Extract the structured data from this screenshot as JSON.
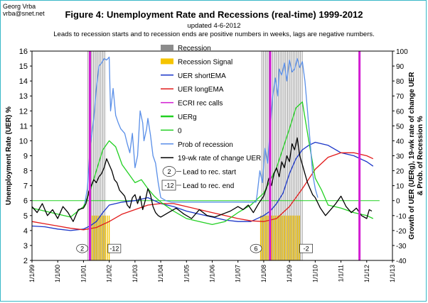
{
  "header": {
    "author": "Georg Vrba",
    "email": "vrba@snet.net",
    "title": "Figure 4:  Unemployment Rate and Recessions (real-time) 1999-2012",
    "updated": "updated 4-6-2012",
    "subtitle": "Leads to recession starts and to recession ends are positive numbers in weeks, lags are negative numbers."
  },
  "chart_data": {
    "type": "line",
    "title": "Figure 4:  Unemployment Rate and Recessions (real-time) 1999-2012",
    "ylabel": "Unemployment Rate (UER) %",
    "y2label_line1": "Growth of UER (UERg), 19-wk rate of change UER",
    "y2label_line2": "& Prob. of Recession %",
    "ylim": [
      2,
      16
    ],
    "y2lim": [
      -40,
      100
    ],
    "yticks": [
      "2",
      "3",
      "4",
      "5",
      "6",
      "7",
      "8",
      "9",
      "10",
      "11",
      "12",
      "13",
      "14",
      "15",
      "16"
    ],
    "y2ticks": [
      "-40",
      "-30",
      "-20",
      "-10",
      "0",
      "10",
      "20",
      "30",
      "40",
      "50",
      "60",
      "70",
      "80",
      "90",
      "100"
    ],
    "xlim": [
      1999.0,
      2013.0
    ],
    "xticks": [
      "1/1/99",
      "1/1/00",
      "1/1/01",
      "1/1/02",
      "1/1/03",
      "1/1/04",
      "1/1/05",
      "1/1/06",
      "1/1/07",
      "1/1/08",
      "1/1/09",
      "1/1/10",
      "1/1/11",
      "1/1/12",
      "1/1/13"
    ],
    "grid": false,
    "legend_position": "top-center",
    "legend": [
      {
        "label": "Recession",
        "kind": "box",
        "color": "#8c8c8c"
      },
      {
        "label": "Recession Signal",
        "kind": "box",
        "color": "#f5c400"
      },
      {
        "label": "UER shortEMA",
        "kind": "line",
        "color": "#1a35c8"
      },
      {
        "label": "UER longEMA",
        "kind": "line",
        "color": "#e21b1b"
      },
      {
        "label": "ECRI rec calls",
        "kind": "line",
        "color": "#d21cd2"
      },
      {
        "label": "UERg",
        "kind": "line",
        "color": "#22d022"
      },
      {
        "label": "0",
        "kind": "line",
        "color": "#22d022"
      },
      {
        "label": "Prob of recession",
        "kind": "line",
        "color": "#5a8fe8"
      },
      {
        "label": "19-wk rate of change UER",
        "kind": "line",
        "color": "#000000"
      }
    ],
    "recessions": [
      [
        2001.17,
        2001.88
      ],
      [
        2007.92,
        2009.5
      ]
    ],
    "signals": [
      [
        2001.28,
        2002.05
      ],
      [
        2007.88,
        2009.45
      ]
    ],
    "ecri_calls": [
      2001.25,
      2008.25,
      2011.72
    ],
    "lead_key": [
      {
        "value": "2",
        "label": "Lead to rec. start",
        "shape": "circle"
      },
      {
        "value": "-12",
        "label": "Lead to rec. end",
        "shape": "box"
      }
    ],
    "lead_annotations": [
      {
        "value": "2",
        "shape": "circle",
        "x": 2000.95,
        "y": 2.8
      },
      {
        "value": "-12",
        "shape": "box",
        "x": 2002.2,
        "y": 2.8
      },
      {
        "value": "6",
        "shape": "circle",
        "x": 2007.7,
        "y": 2.8
      },
      {
        "value": "-2",
        "shape": "box",
        "x": 2009.65,
        "y": 2.8
      }
    ],
    "series": [
      {
        "name": "UER shortEMA",
        "axis": "left",
        "color": "#1a35c8",
        "x": [
          1999.0,
          1999.5,
          2000.0,
          2000.5,
          2001.0,
          2001.25,
          2001.5,
          2001.75,
          2002.0,
          2002.5,
          2003.0,
          2003.25,
          2003.5,
          2003.75,
          2004.0,
          2004.5,
          2005.0,
          2005.5,
          2006.0,
          2006.5,
          2007.0,
          2007.5,
          2008.0,
          2008.25,
          2008.5,
          2008.75,
          2009.0,
          2009.25,
          2009.5,
          2009.75,
          2010.0,
          2010.5,
          2011.0,
          2011.5,
          2012.0,
          2012.25
        ],
        "y": [
          4.3,
          4.25,
          4.1,
          4.0,
          4.1,
          4.3,
          4.6,
          5.2,
          5.7,
          5.9,
          6.0,
          6.1,
          6.2,
          6.0,
          5.8,
          5.6,
          5.3,
          5.1,
          4.9,
          4.7,
          4.6,
          4.6,
          5.0,
          5.3,
          5.8,
          6.5,
          7.8,
          8.8,
          9.4,
          9.7,
          9.9,
          9.7,
          9.2,
          9.0,
          8.6,
          8.3
        ]
      },
      {
        "name": "UER longEMA",
        "axis": "left",
        "color": "#e21b1b",
        "x": [
          1999.0,
          1999.5,
          2000.0,
          2000.5,
          2001.0,
          2001.5,
          2002.0,
          2002.5,
          2003.0,
          2003.5,
          2004.0,
          2004.5,
          2005.0,
          2005.5,
          2006.0,
          2006.5,
          2007.0,
          2007.5,
          2008.0,
          2008.5,
          2009.0,
          2009.5,
          2010.0,
          2010.5,
          2011.0,
          2011.5,
          2012.0,
          2012.25
        ],
        "y": [
          4.6,
          4.45,
          4.3,
          4.15,
          4.05,
          4.2,
          4.6,
          5.1,
          5.4,
          5.7,
          5.8,
          5.8,
          5.6,
          5.4,
          5.2,
          5.0,
          4.8,
          4.65,
          4.6,
          4.8,
          5.6,
          6.8,
          8.1,
          8.9,
          9.2,
          9.2,
          9.0,
          8.8
        ]
      },
      {
        "name": "UERg",
        "axis": "right",
        "color": "#22d022",
        "x": [
          1999.0,
          1999.5,
          2000.0,
          2000.5,
          2001.0,
          2001.25,
          2001.5,
          2001.75,
          2002.0,
          2002.25,
          2002.5,
          2003.0,
          2003.25,
          2003.5,
          2003.75,
          2004.0,
          2004.5,
          2005.0,
          2005.5,
          2006.0,
          2006.5,
          2007.0,
          2007.5,
          2008.0,
          2008.5,
          2009.0,
          2009.25,
          2009.5,
          2009.75,
          2010.0,
          2010.25,
          2010.5,
          2011.0,
          2011.5,
          2012.0,
          2012.25
        ],
        "y": [
          -5,
          -7,
          -9,
          -11,
          -4,
          6,
          20,
          34,
          40,
          36,
          24,
          12,
          14,
          8,
          3,
          -1,
          -7,
          -12,
          -14,
          -16,
          -14,
          -8,
          -3,
          5,
          22,
          48,
          62,
          66,
          40,
          15,
          7,
          -3,
          -5,
          -8,
          -10,
          -12
        ]
      },
      {
        "name": "0",
        "axis": "right",
        "color": "#22d022",
        "x": [
          1999.0,
          2012.5
        ],
        "y": [
          0,
          0
        ]
      },
      {
        "name": "Prob of recession",
        "axis": "right",
        "color": "#5a8fe8",
        "x": [
          2001.05,
          2001.15,
          2001.25,
          2001.4,
          2001.5,
          2001.6,
          2001.7,
          2001.8,
          2001.9,
          2002.0,
          2002.05,
          2002.15,
          2002.25,
          2002.35,
          2002.45,
          2002.6,
          2002.7,
          2002.8,
          2002.9,
          2003.0,
          2003.1,
          2003.2,
          2003.3,
          2003.35,
          2003.45,
          2003.5,
          2003.6,
          2003.7,
          2003.8,
          2003.9,
          2004.0,
          2004.2,
          2004.4,
          2007.7,
          2007.75,
          2007.85,
          2007.95,
          2008.05,
          2008.15,
          2008.25,
          2008.35,
          2008.45,
          2008.55,
          2008.6,
          2008.7,
          2008.8,
          2008.9,
          2009.0,
          2009.1,
          2009.2,
          2009.3,
          2009.4,
          2009.5,
          2009.6,
          2009.7,
          2009.8,
          2009.9,
          2010.0,
          2010.1
        ],
        "y": [
          -2,
          8,
          35,
          55,
          75,
          90,
          92,
          95,
          94,
          96,
          60,
          75,
          57,
          52,
          48,
          45,
          38,
          32,
          45,
          22,
          30,
          60,
          52,
          40,
          48,
          55,
          44,
          30,
          25,
          12,
          2,
          0,
          -1,
          -1,
          5,
          20,
          12,
          35,
          25,
          48,
          70,
          82,
          70,
          88,
          84,
          92,
          80,
          94,
          86,
          88,
          95,
          89,
          93,
          80,
          60,
          40,
          18,
          8,
          2
        ]
      },
      {
        "name": "19-wk rate of change UER",
        "axis": "right",
        "color": "#000000",
        "x": [
          1999.0,
          1999.2,
          1999.4,
          1999.6,
          1999.8,
          2000.0,
          2000.2,
          2000.4,
          2000.6,
          2000.8,
          2001.0,
          2001.1,
          2001.2,
          2001.3,
          2001.4,
          2001.5,
          2001.6,
          2001.7,
          2001.8,
          2001.9,
          2002.0,
          2002.1,
          2002.2,
          2002.3,
          2002.4,
          2002.5,
          2002.6,
          2002.7,
          2002.8,
          2002.9,
          2003.0,
          2003.1,
          2003.2,
          2003.3,
          2003.4,
          2003.5,
          2003.6,
          2003.7,
          2003.8,
          2003.9,
          2004.0,
          2004.3,
          2004.6,
          2004.9,
          2005.2,
          2005.5,
          2005.8,
          2006.1,
          2006.4,
          2006.7,
          2007.0,
          2007.2,
          2007.4,
          2007.6,
          2007.8,
          2008.0,
          2008.1,
          2008.2,
          2008.3,
          2008.4,
          2008.5,
          2008.6,
          2008.7,
          2008.8,
          2008.9,
          2009.0,
          2009.1,
          2009.2,
          2009.3,
          2009.4,
          2009.5,
          2009.6,
          2009.7,
          2009.8,
          2009.9,
          2010.0,
          2010.2,
          2010.4,
          2010.6,
          2010.8,
          2011.0,
          2011.2,
          2011.4,
          2011.6,
          2011.8,
          2012.0,
          2012.1,
          2012.2
        ],
        "y": [
          -4,
          -8,
          -2,
          -10,
          -6,
          -12,
          -4,
          -8,
          -14,
          -6,
          -5,
          -2,
          6,
          10,
          14,
          12,
          16,
          18,
          22,
          28,
          24,
          20,
          14,
          12,
          7,
          5,
          3,
          -3,
          -5,
          2,
          4,
          -2,
          3,
          -6,
          0,
          8,
          4,
          -4,
          -8,
          -10,
          -11,
          -8,
          -5,
          -9,
          -12,
          -6,
          -10,
          -11,
          -9,
          -7,
          -4,
          -6,
          -3,
          -8,
          -2,
          3,
          8,
          15,
          10,
          18,
          22,
          16,
          26,
          22,
          30,
          26,
          38,
          34,
          42,
          30,
          24,
          18,
          12,
          8,
          4,
          2,
          -5,
          -10,
          -6,
          -2,
          3,
          -4,
          -8,
          -5,
          -10,
          -12,
          -6,
          -7
        ]
      }
    ]
  }
}
